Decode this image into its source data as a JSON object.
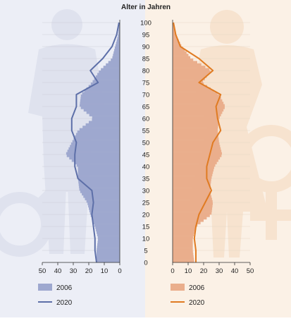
{
  "chart_data": {
    "type": "population-pyramid",
    "title": "Alter in Jahren",
    "age_ticks": [
      "0",
      "5",
      "10",
      "15",
      "20",
      "25",
      "30",
      "35",
      "40",
      "45",
      "50",
      "55",
      "60",
      "65",
      "70",
      "75",
      "80",
      "85",
      "90",
      "95",
      "100"
    ],
    "x_ticks_left": [
      "50",
      "40",
      "30",
      "20",
      "10",
      "0"
    ],
    "x_ticks_right": [
      "0",
      "10",
      "20",
      "30",
      "40",
      "50"
    ],
    "xlim": [
      0,
      50
    ],
    "ylim": [
      0,
      100
    ],
    "colors": {
      "male_2006": "#9ea8cf",
      "male_2020": "#5d6fa8",
      "female_2006": "#eaae8c",
      "female_2020": "#e07b22",
      "panel_left": "#eceef6",
      "panel_right": "#fbf1e6",
      "silhouette_left": "#dfe2ee",
      "silhouette_right": "#f7e3cf"
    },
    "legend_left": [
      {
        "label": "2006",
        "kind": "bar",
        "color": "male_2006"
      },
      {
        "label": "2020",
        "kind": "line",
        "color": "male_2020"
      }
    ],
    "legend_right": [
      {
        "label": "2006",
        "kind": "bar",
        "color": "female_2006"
      },
      {
        "label": "2020",
        "kind": "line",
        "color": "female_2020"
      }
    ],
    "series": [
      {
        "name": "2006",
        "side": "male",
        "kind": "bars",
        "ages": [
          0,
          5,
          10,
          15,
          20,
          25,
          30,
          35,
          40,
          45,
          50,
          55,
          60,
          65,
          70,
          75,
          80,
          85,
          90,
          95,
          100
        ],
        "values": [
          15,
          15,
          14,
          16,
          19,
          21,
          26,
          27,
          27,
          35,
          31,
          27,
          17,
          26,
          25,
          18,
          13,
          5,
          3,
          1,
          0.3
        ]
      },
      {
        "name": "2020",
        "side": "male",
        "kind": "line",
        "ages": [
          0,
          5,
          10,
          15,
          20,
          25,
          30,
          35,
          40,
          45,
          50,
          55,
          60,
          65,
          70,
          75,
          80,
          85,
          90,
          95,
          100
        ],
        "values": [
          15,
          16,
          16,
          17,
          18,
          17,
          18,
          27,
          29,
          29,
          28,
          31,
          31,
          28,
          28,
          14,
          19,
          11,
          5,
          2,
          0.5
        ]
      },
      {
        "name": "2006",
        "side": "female",
        "kind": "bars",
        "ages": [
          0,
          5,
          10,
          15,
          20,
          25,
          30,
          35,
          40,
          45,
          50,
          55,
          60,
          65,
          70,
          75,
          80,
          85,
          90,
          95,
          100
        ],
        "values": [
          14,
          13,
          13,
          15,
          25,
          26,
          24,
          25,
          27,
          32,
          30,
          29,
          30,
          34,
          30,
          19,
          25,
          12,
          6,
          2,
          0.3
        ]
      },
      {
        "name": "2020",
        "side": "female",
        "kind": "line",
        "ages": [
          0,
          5,
          10,
          15,
          20,
          25,
          30,
          35,
          40,
          45,
          50,
          55,
          60,
          65,
          70,
          75,
          80,
          85,
          90,
          95,
          100
        ],
        "values": [
          15,
          15,
          14,
          15,
          17,
          21,
          25,
          22,
          22,
          24,
          26,
          31,
          29,
          28,
          31,
          17,
          26,
          17,
          5,
          2,
          0.5
        ]
      }
    ]
  }
}
